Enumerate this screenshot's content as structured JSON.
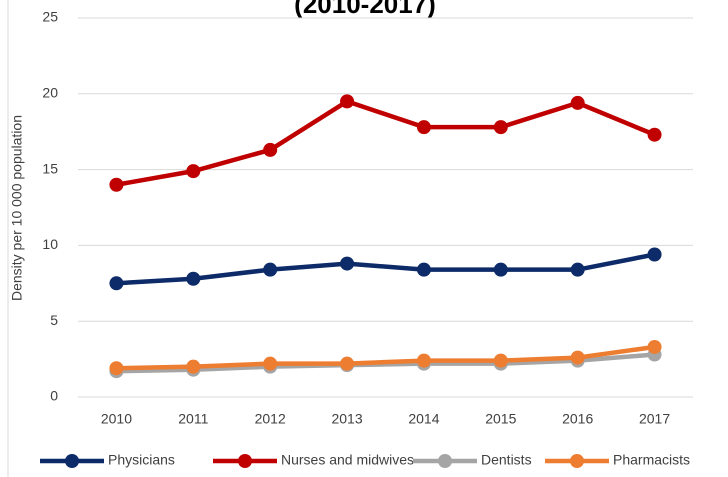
{
  "chart_data": {
    "type": "line",
    "title": "(2010-2017)",
    "y_label": "Density per 10 000 population",
    "categories": [
      "2010",
      "2011",
      "2012",
      "2013",
      "2014",
      "2015",
      "2016",
      "2017"
    ],
    "series": [
      {
        "name": "Physicians",
        "color": "#0d2b68",
        "values": [
          7.5,
          7.8,
          8.4,
          8.8,
          8.4,
          8.4,
          8.4,
          9.4
        ]
      },
      {
        "name": "Nurses and midwives",
        "color": "#c00000",
        "values": [
          14.0,
          14.9,
          16.3,
          19.5,
          17.8,
          17.8,
          19.4,
          17.3
        ]
      },
      {
        "name": "Dentists",
        "color": "#a5a5a5",
        "values": [
          1.7,
          1.8,
          2.0,
          2.1,
          2.2,
          2.2,
          2.4,
          2.8
        ]
      },
      {
        "name": "Pharmacists",
        "color": "#ed7d31",
        "values": [
          1.9,
          2.0,
          2.2,
          2.2,
          2.4,
          2.4,
          2.6,
          3.3
        ]
      }
    ],
    "ylim": [
      0,
      25
    ],
    "yticks": [
      0,
      5,
      10,
      15,
      20,
      25
    ],
    "grid": true,
    "legend": "bottom"
  }
}
